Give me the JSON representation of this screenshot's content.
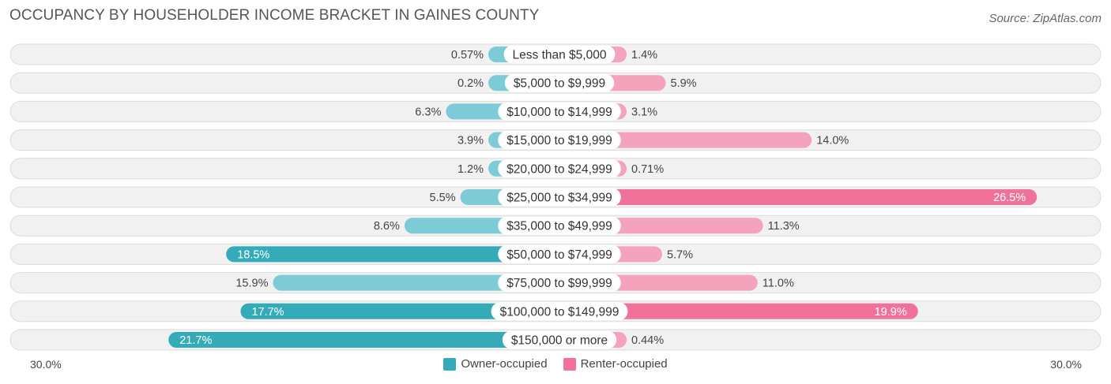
{
  "title": "OCCUPANCY BY HOUSEHOLDER INCOME BRACKET IN GAINES COUNTY",
  "source": "Source: ZipAtlas.com",
  "colors": {
    "owner_light": "#7ccbd6",
    "owner_dark": "#35abba",
    "renter_light": "#f5a3bd",
    "renter_dark": "#f0729b",
    "track": "#f1f1f1",
    "track_border": "#dcdcdc"
  },
  "chart_data": {
    "type": "bar",
    "orientation": "horizontal-diverging",
    "title": "OCCUPANCY BY HOUSEHOLDER INCOME BRACKET IN GAINES COUNTY",
    "categories": [
      "Less than $5,000",
      "$5,000 to $9,999",
      "$10,000 to $14,999",
      "$15,000 to $19,999",
      "$20,000 to $24,999",
      "$25,000 to $34,999",
      "$35,000 to $49,999",
      "$50,000 to $74,999",
      "$75,000 to $99,999",
      "$100,000 to $149,999",
      "$150,000 or more"
    ],
    "series": [
      {
        "name": "Owner-occupied",
        "values": [
          0.57,
          0.2,
          6.3,
          3.9,
          1.2,
          5.5,
          8.6,
          18.5,
          15.9,
          17.7,
          21.7
        ],
        "labels": [
          "0.57%",
          "0.2%",
          "6.3%",
          "3.9%",
          "1.2%",
          "5.5%",
          "8.6%",
          "18.5%",
          "15.9%",
          "17.7%",
          "21.7%"
        ]
      },
      {
        "name": "Renter-occupied",
        "values": [
          1.4,
          5.9,
          3.1,
          14.0,
          0.71,
          26.5,
          11.3,
          5.7,
          11.0,
          19.9,
          0.44
        ],
        "labels": [
          "1.4%",
          "5.9%",
          "3.1%",
          "14.0%",
          "0.71%",
          "26.5%",
          "11.3%",
          "5.7%",
          "11.0%",
          "19.9%",
          "0.44%"
        ]
      }
    ],
    "xlim": [
      -30,
      30
    ],
    "axis_labels": {
      "left": "30.0%",
      "right": "30.0%"
    },
    "legend": [
      "Owner-occupied",
      "Renter-occupied"
    ],
    "legend_position": "bottom-center"
  }
}
